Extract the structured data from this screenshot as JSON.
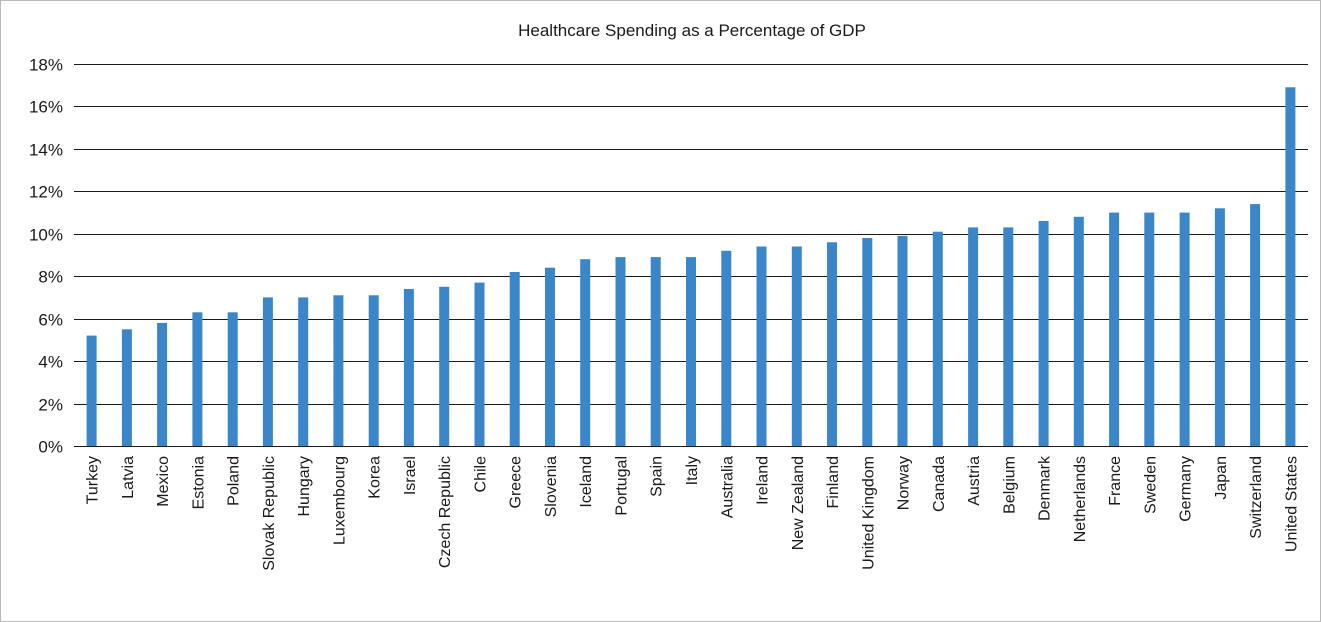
{
  "chart_data": {
    "type": "bar",
    "title": "Healthcare Spending as a Percentage of GDP",
    "xlabel": "",
    "ylabel": "",
    "ylim": [
      0,
      18
    ],
    "yticks": [
      0,
      2,
      4,
      6,
      8,
      10,
      12,
      14,
      16,
      18
    ],
    "ytick_labels": [
      "0%",
      "2%",
      "4%",
      "6%",
      "8%",
      "10%",
      "12%",
      "14%",
      "16%",
      "18%"
    ],
    "grid": true,
    "legend": "none",
    "bar_color": "#3a86c8",
    "categories": [
      "Turkey",
      "Latvia",
      "Mexico",
      "Estonia",
      "Poland",
      "Slovak Republic",
      "Hungary",
      "Luxembourg",
      "Korea",
      "Israel",
      "Czech Republic",
      "Chile",
      "Greece",
      "Slovenia",
      "Iceland",
      "Portugal",
      "Spain",
      "Italy",
      "Australia",
      "Ireland",
      "New Zealand",
      "Finland",
      "United Kingdom",
      "Norway",
      "Canada",
      "Austria",
      "Belgium",
      "Denmark",
      "Netherlands",
      "France",
      "Sweden",
      "Germany",
      "Japan",
      "Switzerland",
      "United States"
    ],
    "values": [
      5.2,
      5.5,
      5.8,
      6.3,
      6.3,
      7.0,
      7.0,
      7.1,
      7.1,
      7.4,
      7.5,
      7.7,
      8.2,
      8.4,
      8.8,
      8.9,
      8.9,
      8.9,
      9.2,
      9.4,
      9.4,
      9.6,
      9.8,
      9.9,
      10.1,
      10.3,
      10.3,
      10.6,
      10.8,
      11.0,
      11.0,
      11.0,
      11.2,
      11.4,
      16.9
    ]
  }
}
